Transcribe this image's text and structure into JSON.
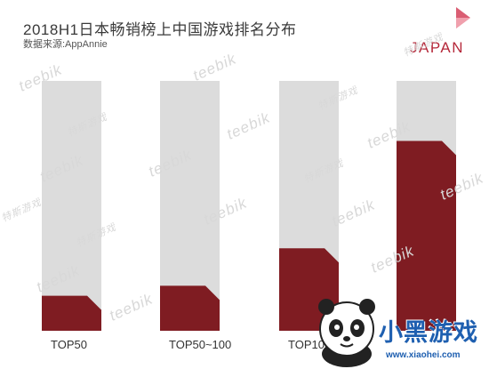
{
  "header": {
    "title": "2018H1日本畅销榜上中国游戏排名分布",
    "source": "数据来源:AppAnnie",
    "region": "JAPAN"
  },
  "watermarks": [
    "teebik",
    "特斯游戏"
  ],
  "logo": {
    "text": "小黑游戏",
    "url": "www.xiaohei.com"
  },
  "colors": {
    "bar_background": "#dcdcdc",
    "bar_fill": "#7f1c22",
    "accent": "#b5283a"
  },
  "chart_data": {
    "type": "bar",
    "categories": [
      "TOP50",
      "TOP50~100",
      "TOP100~",
      ""
    ],
    "values": [
      14,
      18,
      33,
      76
    ],
    "ylim": [
      0,
      100
    ],
    "title": "2018H1日本畅销榜上中国游戏排名分布",
    "xlabel": "",
    "ylabel": "",
    "grid": false,
    "legend": "none"
  }
}
